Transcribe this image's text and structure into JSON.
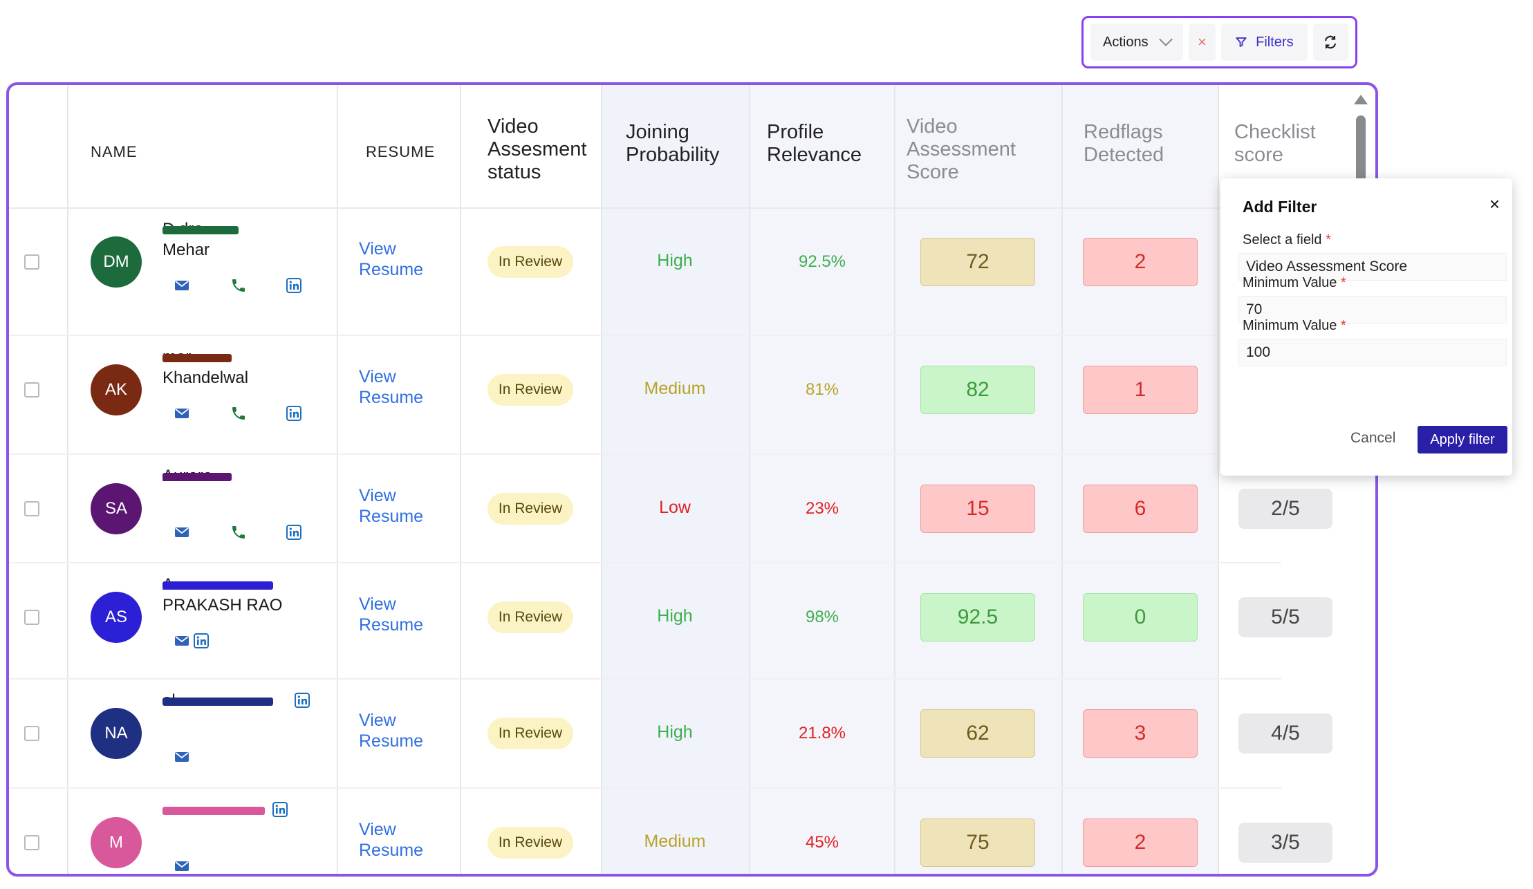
{
  "toolbar": {
    "actions_label": "Actions",
    "clear_symbol": "×",
    "filters_label": "Filters"
  },
  "table": {
    "headers": {
      "name": "NAME",
      "resume": "RESUME",
      "video_status": [
        "Video",
        "Assesment",
        "status"
      ],
      "joining": [
        "Joining",
        "Probability"
      ],
      "relevance": [
        "Profile",
        "Relevance"
      ],
      "video_score": [
        "Video",
        "Assessment",
        "Score"
      ],
      "redflags": [
        "Redflags",
        "Detected"
      ],
      "checklist": [
        "Checklist",
        "score"
      ]
    },
    "rows": [
      {
        "initials": "DM",
        "name_line1": "D          dra",
        "name_line2": "Mehar",
        "resume": [
          "View",
          "Resume"
        ],
        "status": "In Review",
        "joining": "High",
        "relevance": "92.5%",
        "video_score": "72",
        "redflags": "2",
        "checklist": ""
      },
      {
        "initials": "AK",
        "name_line1": "        mar",
        "name_line2": "Khandelwal",
        "resume": [
          "View",
          "Resume"
        ],
        "status": "In Review",
        "joining": "Medium",
        "relevance": "81%",
        "video_score": "82",
        "redflags": "1",
        "checklist": ""
      },
      {
        "initials": "SA",
        "name_line1": "           Aurora",
        "name_line2": "",
        "resume": [
          "View",
          "Resume"
        ],
        "status": "In Review",
        "joining": "Low",
        "relevance": "23%",
        "video_score": "15",
        "redflags": "6",
        "checklist": "2/5"
      },
      {
        "initials": "AS",
        "name_line1": "           A",
        "name_line2": "PRAKASH RAO",
        "resume": [
          "View",
          "Resume"
        ],
        "status": "In Review",
        "joining": "High",
        "relevance": "98%",
        "video_score": "92.5",
        "redflags": "0",
        "checklist": "5/5"
      },
      {
        "initials": "NA",
        "name_line1": "            al",
        "name_line2": "",
        "resume": [
          "View",
          "Resume"
        ],
        "status": "In Review",
        "joining": "High",
        "relevance": "21.8%",
        "video_score": "62",
        "redflags": "3",
        "checklist": "4/5"
      },
      {
        "initials": "M",
        "name_line1": "",
        "name_line2": "",
        "resume": [
          "View",
          "Resume"
        ],
        "status": "In Review",
        "joining": "Medium",
        "relevance": "45%",
        "video_score": "75",
        "redflags": "2",
        "checklist": "3/5"
      }
    ]
  },
  "filter_popup": {
    "title": "Add Filter",
    "close_symbol": "×",
    "field_label": "Select a field",
    "field_value": "Video Assessment Score",
    "min_label": "Minimum Value",
    "min_value": "70",
    "max_label": "Minimum Value",
    "max_value": "100",
    "required_mark": "*",
    "cancel_label": "Cancel",
    "apply_label": "Apply filter"
  },
  "colors": {
    "accent": "#8a55e6",
    "link": "#2f6fe0",
    "high": "#3cb04a",
    "medium": "#b8a22a",
    "low": "#e02020",
    "apply": "#2a1fa7"
  }
}
